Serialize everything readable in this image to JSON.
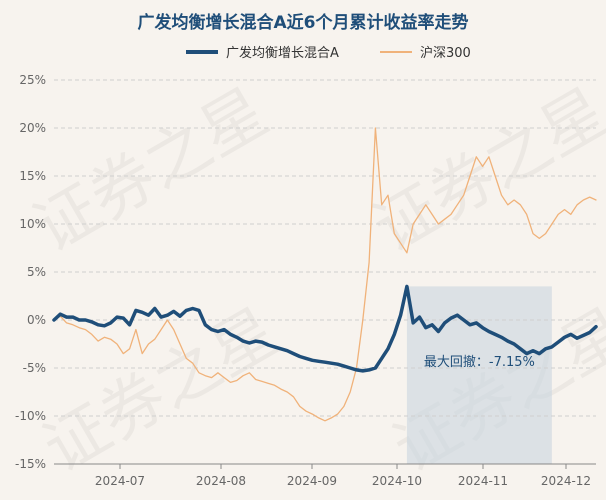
{
  "chart_data": {
    "type": "line",
    "title": "广发均衡增长混合A近6个月累计收益率走势",
    "ylim": [
      -15,
      25
    ],
    "y_ticks": [
      "25%",
      "20%",
      "15%",
      "10%",
      "5%",
      "0%",
      "-5%",
      "-10%",
      "-15%"
    ],
    "x_ticks": [
      "2024-07",
      "2024-08",
      "2024-09",
      "2024-10",
      "2024-11",
      "2024-12"
    ],
    "grid": "horizontal dashed",
    "legend_position": "top",
    "series": [
      {
        "name": "广发均衡增长混合A",
        "color": "#1f4e79",
        "values": [
          0,
          0.6,
          0.3,
          0.3,
          0,
          0,
          -0.2,
          -0.5,
          -0.6,
          -0.3,
          0.3,
          0.2,
          -0.5,
          1.0,
          0.8,
          0.5,
          1.2,
          0.3,
          0.5,
          0.9,
          0.4,
          1.0,
          1.2,
          1.0,
          -0.5,
          -1.0,
          -1.2,
          -1.0,
          -1.5,
          -1.8,
          -2.2,
          -2.4,
          -2.2,
          -2.3,
          -2.6,
          -2.8,
          -3.0,
          -3.2,
          -3.5,
          -3.8,
          -4.0,
          -4.2,
          -4.3,
          -4.4,
          -4.5,
          -4.6,
          -4.8,
          -5.0,
          -5.2,
          -5.3,
          -5.2,
          -5.0,
          -4.0,
          -3.0,
          -1.5,
          0.5,
          3.5,
          -0.3,
          0.3,
          -0.8,
          -0.5,
          -1.2,
          -0.3,
          0.2,
          0.5,
          0.0,
          -0.5,
          -0.3,
          -0.8,
          -1.2,
          -1.5,
          -1.8,
          -2.2,
          -2.5,
          -3.0,
          -3.5,
          -3.2,
          -3.5,
          -3.0,
          -2.8,
          -2.3,
          -1.8,
          -1.5,
          -1.9,
          -1.6,
          -1.3,
          -0.7
        ]
      },
      {
        "name": "沪深300",
        "color": "#f0b27a",
        "values": [
          0,
          0.4,
          -0.3,
          -0.5,
          -0.8,
          -1.0,
          -1.5,
          -2.2,
          -1.8,
          -2.0,
          -2.5,
          -3.5,
          -3.0,
          -1.0,
          -3.5,
          -2.5,
          -2.0,
          -1.0,
          0.0,
          -1.0,
          -2.5,
          -4.0,
          -4.5,
          -5.5,
          -5.8,
          -6.0,
          -5.5,
          -6.0,
          -6.5,
          -6.3,
          -5.8,
          -5.5,
          -6.2,
          -6.4,
          -6.6,
          -6.8,
          -7.2,
          -7.5,
          -8.0,
          -9.0,
          -9.5,
          -9.8,
          -10.2,
          -10.5,
          -10.2,
          -9.8,
          -9.0,
          -7.5,
          -5.0,
          0.0,
          6.0,
          20.0,
          12.0,
          13.0,
          9.0,
          8.0,
          7.0,
          10.0,
          11.0,
          12.0,
          11.0,
          10.0,
          10.5,
          11.0,
          12.0,
          13.0,
          15.0,
          17.0,
          16.0,
          17.0,
          15.0,
          13.0,
          12.0,
          12.5,
          12.0,
          11.0,
          9.0,
          8.5,
          9.0,
          10.0,
          11.0,
          11.5,
          11.0,
          12.0,
          12.5,
          12.8,
          12.5
        ]
      }
    ],
    "drawdown": {
      "label": "最大回撤：-7.15%",
      "start_index": 56,
      "end_index": 79
    }
  },
  "watermark_text": "证券之星"
}
